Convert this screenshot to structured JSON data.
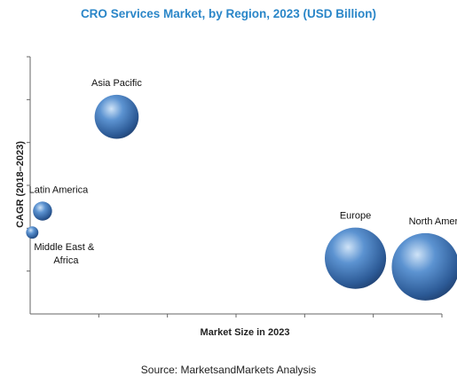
{
  "chart_title": "CRO Services Market, by Region, 2023 (USD Billion)",
  "source": "Source: MarketsandMarkets Analysis",
  "chart_data": {
    "type": "bubble",
    "title": "CRO Services Market, by Region, 2023 (USD Billion)",
    "xlabel": "Market Size in 2023",
    "ylabel": "CAGR (2018–2023)",
    "xlim": [
      0,
      10
    ],
    "ylim": [
      0,
      6
    ],
    "grid": false,
    "legend": "none",
    "bubble_color": "#3a6fb5",
    "points": [
      {
        "label": "Asia Pacific",
        "x": 2.1,
        "y": 4.6,
        "size": 3.2
      },
      {
        "label": "Latin America",
        "x": 0.3,
        "y": 2.4,
        "size": 0.6
      },
      {
        "label": "Middle East & Africa",
        "x": 0.05,
        "y": 1.9,
        "size": 0.25
      },
      {
        "label": "Europe",
        "x": 7.9,
        "y": 1.3,
        "size": 6.2
      },
      {
        "label": "North America",
        "x": 9.6,
        "y": 1.1,
        "size": 7.5
      }
    ]
  }
}
